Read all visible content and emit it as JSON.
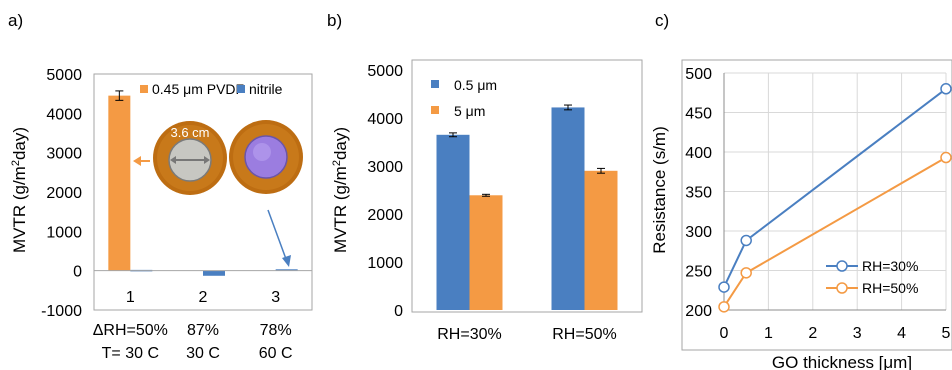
{
  "colors": {
    "blue": "#4a7fc1",
    "orange": "#f49a44",
    "grid": "#d9d9d9",
    "frame": "#a6a6a6"
  },
  "panels": [
    "a)",
    "b)",
    "c)"
  ],
  "photo": {
    "size_label": "3.6 cm",
    "rim_color": "#bd6d12",
    "film_color": "#9b7de0"
  },
  "chart_data": [
    {
      "type": "bar",
      "panel": "a)",
      "ylabel": "MVTR (g/m²day)",
      "ylim": [
        -1000,
        5000
      ],
      "yticks": [
        -1000,
        0,
        1000,
        2000,
        3000,
        4000,
        5000
      ],
      "categories": [
        "1",
        "2",
        "3"
      ],
      "conditions": [
        {
          "line1": "ΔRH=50%",
          "line2": "T= 30 C"
        },
        {
          "line1": "87%",
          "line2": "30 C"
        },
        {
          "line1": "78%",
          "line2": "60 C"
        }
      ],
      "series": [
        {
          "name": "0.45 μm PVDF",
          "color": "#f49a44",
          "values": [
            4450,
            null,
            null
          ],
          "errors": [
            120,
            null,
            null
          ]
        },
        {
          "name": "nitrile",
          "color": "#4a7fc1",
          "values": [
            20,
            -130,
            35
          ],
          "errors": [
            null,
            null,
            null
          ]
        }
      ],
      "legend": "top-right"
    },
    {
      "type": "bar",
      "panel": "b)",
      "ylabel": "MVTR (g/m²day)",
      "ylim": [
        0,
        5000
      ],
      "yticks": [
        0,
        1000,
        2000,
        3000,
        4000,
        5000
      ],
      "categories": [
        "RH=30%",
        "RH=50%"
      ],
      "series": [
        {
          "name": "0.5 μm",
          "color": "#4a7fc1",
          "values": [
            3650,
            4220
          ],
          "errors": [
            40,
            50
          ]
        },
        {
          "name": "5 μm",
          "color": "#f49a44",
          "values": [
            2390,
            2900
          ],
          "errors": [
            20,
            50
          ]
        }
      ],
      "legend": "top-left"
    },
    {
      "type": "line",
      "panel": "c)",
      "xlabel": "GO thickness [μm]",
      "ylabel": "Resistance (s/m)",
      "xlim": [
        0,
        5
      ],
      "ylim": [
        200,
        500
      ],
      "xticks": [
        0,
        1,
        2,
        3,
        4,
        5
      ],
      "yticks": [
        200,
        250,
        300,
        350,
        400,
        450,
        500
      ],
      "series": [
        {
          "name": "RH=30%",
          "color": "#4a7fc1",
          "x": [
            0,
            0.5,
            5
          ],
          "y": [
            229,
            288,
            480
          ]
        },
        {
          "name": "RH=50%",
          "color": "#f49a44",
          "x": [
            0,
            0.5,
            5
          ],
          "y": [
            204,
            247,
            393
          ]
        }
      ],
      "grid": true,
      "legend": "bottom-right"
    }
  ]
}
